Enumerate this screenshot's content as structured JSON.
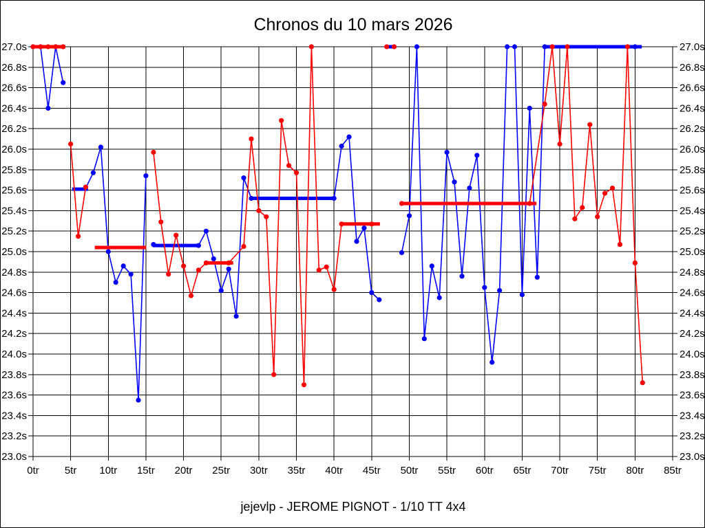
{
  "window": {
    "background": "#ffffff",
    "border_color": "#000000"
  },
  "title": "Chronos du 10 mars 2026",
  "caption": "jejevlp - JEROME PIGNOT - 1/10 TT 4x4",
  "chart_data": {
    "type": "line",
    "title": "Chronos du 10 mars 2026",
    "x_unit": "tr",
    "y_unit": "s",
    "x_range_laps": [
      0,
      85
    ],
    "y_range_seconds": [
      23.0,
      27.0
    ],
    "y_step_seconds": 0.2,
    "x_step_laps": 5,
    "grid": true,
    "clip_ceiling_seconds": 27.0,
    "x_tick_labels": [
      "0tr",
      "5tr",
      "10tr",
      "15tr",
      "20tr",
      "25tr",
      "30tr",
      "35tr",
      "40tr",
      "45tr",
      "50tr",
      "55tr",
      "60tr",
      "65tr",
      "70tr",
      "75tr",
      "80tr",
      "85tr"
    ],
    "y_tick_labels": [
      "27.0s",
      "26.8s",
      "26.6s",
      "26.4s",
      "26.2s",
      "26.0s",
      "25.8s",
      "25.6s",
      "25.4s",
      "25.2s",
      "25.0s",
      "24.8s",
      "24.6s",
      "24.4s",
      "24.2s",
      "24.0s",
      "23.8s",
      "23.6s",
      "23.4s",
      "23.2s",
      "23.0s"
    ],
    "series": [
      {
        "name": "blue",
        "color": "#0000ff",
        "runs": [
          [
            [
              0,
              27.0
            ],
            [
              1,
              27.0
            ],
            [
              2,
              26.4
            ],
            [
              3,
              27.0
            ],
            [
              4,
              26.65
            ]
          ],
          [
            [
              7,
              25.62
            ],
            [
              8,
              25.77
            ],
            [
              9,
              26.02
            ],
            [
              10,
              25.0
            ],
            [
              11,
              24.7
            ],
            [
              12,
              24.86
            ],
            [
              13,
              24.78
            ],
            [
              14,
              23.55
            ],
            [
              15,
              25.74
            ]
          ],
          [
            [
              16,
              25.07
            ],
            [
              22,
              25.06
            ],
            [
              23,
              25.2
            ],
            [
              24,
              24.93
            ],
            [
              25,
              24.62
            ],
            [
              26,
              24.83
            ],
            [
              27,
              24.37
            ],
            [
              28,
              25.72
            ],
            [
              29,
              25.52
            ],
            [
              40,
              25.52
            ],
            [
              41,
              26.03
            ],
            [
              42,
              26.12
            ],
            [
              43,
              25.1
            ],
            [
              44,
              25.23
            ],
            [
              45,
              24.6
            ],
            [
              46,
              24.53
            ]
          ],
          [
            [
              49,
              24.99
            ],
            [
              50,
              25.35
            ],
            [
              51,
              27.0
            ],
            [
              52,
              24.15
            ],
            [
              53,
              24.86
            ],
            [
              54,
              24.55
            ],
            [
              55,
              25.97
            ],
            [
              56,
              25.68
            ],
            [
              57,
              24.76
            ],
            [
              58,
              25.62
            ],
            [
              59,
              25.94
            ],
            [
              60,
              24.65
            ],
            [
              61,
              23.92
            ],
            [
              62,
              24.62
            ],
            [
              63,
              27.0
            ],
            [
              64,
              27.0
            ],
            [
              65,
              24.58
            ],
            [
              66,
              26.4
            ],
            [
              67,
              24.75
            ],
            [
              68,
              27.0
            ],
            [
              80,
              27.0
            ]
          ]
        ]
      },
      {
        "name": "red",
        "color": "#ff0000",
        "runs": [
          [
            [
              0,
              27.0
            ],
            [
              1,
              27.0
            ],
            [
              2,
              27.0
            ],
            [
              3,
              27.0
            ],
            [
              4,
              27.0
            ]
          ],
          [
            [
              5,
              26.05
            ],
            [
              6,
              25.15
            ],
            [
              7,
              25.63
            ]
          ],
          [
            [
              16,
              25.97
            ],
            [
              17,
              25.29
            ],
            [
              18,
              24.78
            ],
            [
              19,
              25.16
            ],
            [
              20,
              24.86
            ],
            [
              21,
              24.57
            ],
            [
              22,
              24.82
            ],
            [
              23,
              24.89
            ],
            [
              26,
              24.89
            ],
            [
              28,
              25.05
            ],
            [
              29,
              26.1
            ],
            [
              30,
              25.4
            ],
            [
              31,
              25.34
            ],
            [
              32,
              23.8
            ],
            [
              33,
              26.28
            ],
            [
              34,
              25.84
            ],
            [
              35,
              25.77
            ],
            [
              36,
              23.7
            ],
            [
              37,
              27.0
            ],
            [
              38,
              24.82
            ],
            [
              39,
              24.85
            ],
            [
              40,
              24.63
            ],
            [
              41,
              25.27
            ],
            [
              45,
              25.27
            ]
          ],
          [
            [
              47,
              27.0
            ]
          ],
          [
            [
              48,
              27.0
            ]
          ],
          [
            [
              49,
              25.47
            ],
            [
              66,
              25.47
            ],
            [
              68,
              26.44
            ],
            [
              69,
              27.0
            ],
            [
              70,
              26.05
            ],
            [
              71,
              27.0
            ],
            [
              72,
              25.32
            ],
            [
              73,
              25.43
            ],
            [
              74,
              26.24
            ],
            [
              75,
              25.34
            ],
            [
              76,
              25.57
            ],
            [
              77,
              25.62
            ],
            [
              78,
              25.07
            ],
            [
              79,
              27.0
            ],
            [
              80,
              24.89
            ],
            [
              81,
              23.72
            ]
          ]
        ]
      }
    ],
    "average_segments": [
      {
        "color": "red",
        "from_lap": 0.0,
        "to_lap": 4.3,
        "value_seconds": 27.0
      },
      {
        "color": "blue",
        "from_lap": 5.2,
        "to_lap": 7.3,
        "value_seconds": 25.61
      },
      {
        "color": "red",
        "from_lap": 8.2,
        "to_lap": 15.05,
        "value_seconds": 25.04
      },
      {
        "color": "blue",
        "from_lap": 15.9,
        "to_lap": 22.1,
        "value_seconds": 25.06
      },
      {
        "color": "red",
        "from_lap": 23.1,
        "to_lap": 26.6,
        "value_seconds": 24.89
      },
      {
        "color": "blue",
        "from_lap": 29.2,
        "to_lap": 40.0,
        "value_seconds": 25.52
      },
      {
        "color": "red",
        "from_lap": 41.0,
        "to_lap": 46.1,
        "value_seconds": 25.27
      },
      {
        "color": "blue",
        "from_lap": 46.9,
        "to_lap": 48.1,
        "value_seconds": 27.0
      },
      {
        "color": "red",
        "from_lap": 48.9,
        "to_lap": 66.9,
        "value_seconds": 25.47
      },
      {
        "color": "blue",
        "from_lap": 67.8,
        "to_lap": 80.9,
        "value_seconds": 27.0
      }
    ]
  }
}
